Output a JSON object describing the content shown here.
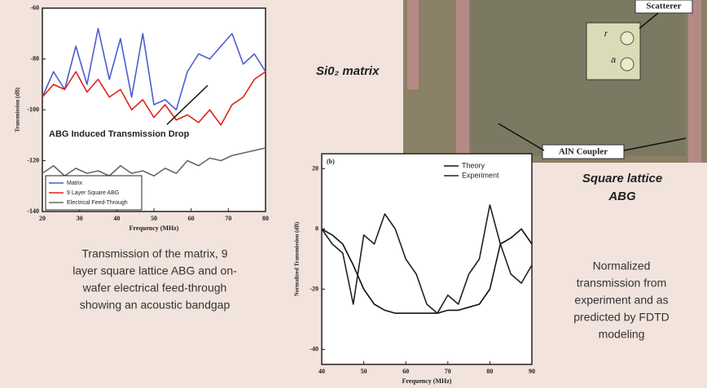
{
  "chart_data": [
    {
      "type": "line",
      "xlabel": "Frequency (MHz)",
      "ylabel": "Transmission (dB)",
      "annotation": "ABG Induced Transmission Drop",
      "x": [
        20,
        23,
        26,
        29,
        32,
        35,
        38,
        41,
        44,
        47,
        50,
        53,
        56,
        59,
        62,
        65,
        68,
        71,
        74,
        77,
        80
      ],
      "series": [
        {
          "name": "Matrix",
          "color": "#4a5ecc",
          "values": [
            -95,
            -85,
            -92,
            -75,
            -90,
            -68,
            -88,
            -72,
            -95,
            -70,
            -98,
            -96,
            -100,
            -85,
            -78,
            -80,
            -75,
            -70,
            -82,
            -78,
            -85
          ]
        },
        {
          "name": "9 Layer Square ABG",
          "color": "#e0221a",
          "values": [
            -95,
            -90,
            -92,
            -85,
            -93,
            -88,
            -95,
            -92,
            -100,
            -96,
            -103,
            -98,
            -104,
            -102,
            -105,
            -100,
            -106,
            -98,
            -95,
            -88,
            -85
          ]
        },
        {
          "name": "Electrical Feed-Through",
          "color": "#666666",
          "values": [
            -125,
            -122,
            -126,
            -123,
            -125,
            -124,
            -126,
            -122,
            -125,
            -124,
            -126,
            -123,
            -125,
            -120,
            -122,
            -119,
            -120,
            -118,
            -117,
            -116,
            -115
          ]
        }
      ],
      "xlim": [
        20,
        80
      ],
      "xticks": [
        20,
        30,
        40,
        50,
        60,
        70,
        80
      ],
      "ylim": [
        -140,
        -60
      ],
      "yticks": [
        -140,
        -120,
        -100,
        -80,
        -60
      ],
      "legend": "lower left"
    },
    {
      "type": "line",
      "xlabel": "Frequency (MHz)",
      "ylabel": "Normalized Transmission (dB)",
      "panel": "(b)",
      "x": [
        40,
        42.5,
        45,
        47.5,
        50,
        52.5,
        55,
        57.5,
        60,
        62.5,
        65,
        67.5,
        70,
        72.5,
        75,
        77.5,
        80,
        82.5,
        85,
        87.5,
        90
      ],
      "series": [
        {
          "name": "Theory",
          "color": "#111111",
          "values": [
            0,
            -2,
            -5,
            -12,
            -20,
            -25,
            -27,
            -28,
            -28,
            -28,
            -28,
            -28,
            -27,
            -27,
            -26,
            -25,
            -20,
            -5,
            -3,
            0,
            -5
          ]
        },
        {
          "name": "Experiment",
          "color": "#222222",
          "values": [
            0,
            -5,
            -8,
            -25,
            -2,
            -5,
            5,
            0,
            -10,
            -15,
            -25,
            -28,
            -22,
            -25,
            -15,
            -10,
            8,
            -5,
            -15,
            -18,
            -12
          ]
        }
      ],
      "xlim": [
        40,
        90
      ],
      "xticks": [
        40,
        50,
        60,
        70,
        80,
        90
      ],
      "ylim": [
        -45,
        25
      ],
      "yticks": [
        -40,
        -20,
        0,
        20
      ],
      "legend": "upper right"
    }
  ],
  "image_labels": {
    "matrix": "Si0₂ matrix",
    "scatterer": "Scatterer",
    "r": "r",
    "a": "a",
    "coupler": "AlN Coupler",
    "lattice": [
      "Square lattice",
      "ABG"
    ]
  },
  "caption_left": [
    "Transmission of the matrix, 9",
    "layer square lattice ABG and on-",
    "wafer electrical feed-through",
    "showing an acoustic bandgap"
  ],
  "caption_right": [
    "Normalized",
    "transmission from",
    "experiment and as",
    "predicted by FDTD",
    "modeling"
  ]
}
